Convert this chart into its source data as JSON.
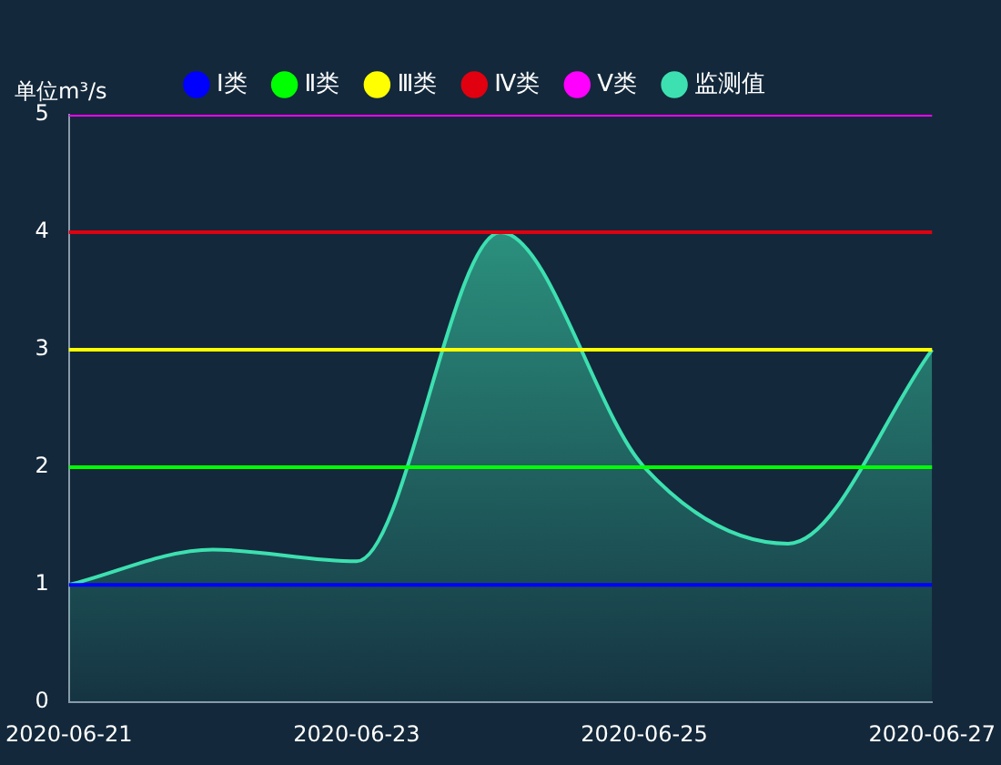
{
  "chart_data": {
    "type": "line",
    "ylabel": "单位m³/s",
    "categories": [
      "2020-06-21",
      null,
      "2020-06-23",
      null,
      "2020-06-25",
      null,
      "2020-06-27"
    ],
    "series": [
      {
        "name": "Ⅰ类",
        "color": "#0000ff",
        "values": [
          1,
          1,
          1,
          1,
          1,
          1,
          1
        ]
      },
      {
        "name": "Ⅱ类",
        "color": "#00ff00",
        "values": [
          2,
          2,
          2,
          2,
          2,
          2,
          2
        ]
      },
      {
        "name": "Ⅲ类",
        "color": "#ffff00",
        "values": [
          3,
          3,
          3,
          3,
          3,
          3,
          3
        ]
      },
      {
        "name": "Ⅳ类",
        "color": "#e00010",
        "values": [
          4,
          4,
          4,
          4,
          4,
          4,
          4
        ]
      },
      {
        "name": "Ⅴ类",
        "color": "#ff00ff",
        "values": [
          5,
          5,
          5,
          5,
          5,
          5,
          5
        ]
      },
      {
        "name": "监测值",
        "type": "area",
        "color": "#3de0b0",
        "values": [
          1.0,
          1.3,
          1.2,
          4.0,
          2.0,
          1.35,
          3.0
        ]
      }
    ],
    "ylim": [
      0,
      5
    ],
    "yticks": [
      0,
      1,
      2,
      3,
      4,
      5
    ],
    "grid": false,
    "legend": "top",
    "marker": "none"
  }
}
